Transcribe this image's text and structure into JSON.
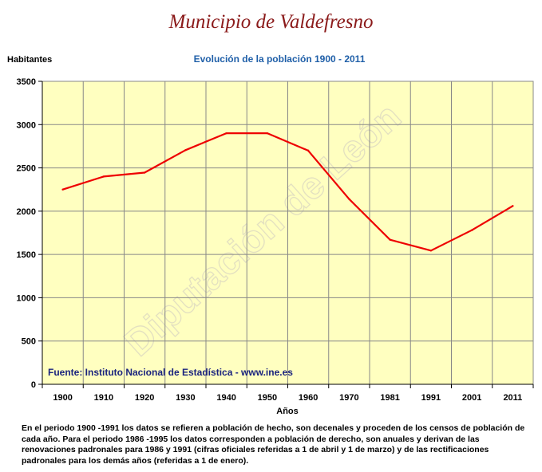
{
  "header": {
    "title": "Municipio de Valdefresno"
  },
  "chart_data": {
    "type": "line",
    "title": "Evolución de la población 1900 - 2011",
    "ylabel": "Habitantes",
    "xlabel": "Años",
    "ylim": [
      0,
      3500
    ],
    "yticks": [
      "0",
      "500",
      "1000",
      "1500",
      "2000",
      "2500",
      "3000",
      "3500"
    ],
    "categories": [
      "1900",
      "1910",
      "1920",
      "1930",
      "1940",
      "1950",
      "1960",
      "1970",
      "1981",
      "1991",
      "2001",
      "2011"
    ],
    "series": [
      {
        "values": [
          2250,
          2400,
          2445,
          2705,
          2900,
          2900,
          2700,
          2140,
          1670,
          1545,
          1780,
          2060
        ]
      }
    ],
    "grid": true,
    "source": "Fuente: Instituto Nacional de Estadística - www.ine.es",
    "watermark": "Diputación de León",
    "colors": {
      "line": "#ee0000",
      "plot_background": "#ffffc0",
      "grid": "#888888"
    }
  },
  "footnote": "En el periodo 1900 -1991 los datos se refieren a población de hecho, son decenales y proceden de los censos de población de cada año. Para el periodo 1986 -1995 los datos corresponden a población de derecho, son anuales y derivan de las renovaciones padronales para 1986 y 1991 (cifras oficiales referidas a 1 de abril y 1 de marzo) y de las rectificaciones padronales para los demás años (referidas a 1 de enero)."
}
